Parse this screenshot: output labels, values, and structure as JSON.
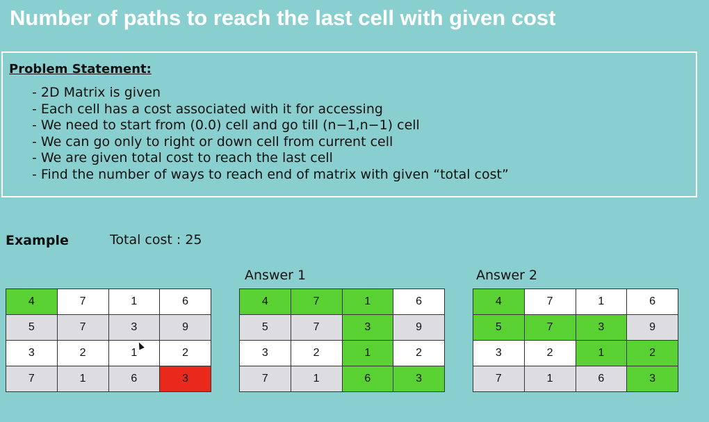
{
  "title": "Number of paths to reach the last cell with given cost",
  "problem": {
    "heading": "Problem Statement:",
    "items": [
      "- 2D Matrix is given",
      "- Each cell has a cost associated with it for accessing",
      "- We need to start from (0.0) cell and go till (n−1,n−1) cell",
      "- We can go only to right or down cell from current cell",
      "- We are given total cost to reach the last cell",
      "- Find the number of ways to reach end of matrix with given “total cost”"
    ]
  },
  "example": {
    "label": "Example",
    "total_cost": "Total cost : 25"
  },
  "matrix": [
    [
      "4",
      "7",
      "1",
      "6"
    ],
    [
      "5",
      "7",
      "3",
      "9"
    ],
    [
      "3",
      "2",
      "1",
      "2"
    ],
    [
      "7",
      "1",
      "6",
      "3"
    ]
  ],
  "grids": [
    {
      "label": "",
      "highlights": {
        "green": [
          [
            0,
            0
          ]
        ],
        "red": [
          [
            3,
            3
          ]
        ]
      }
    },
    {
      "label": "Answer 1",
      "highlights": {
        "green": [
          [
            0,
            0
          ],
          [
            0,
            1
          ],
          [
            0,
            2
          ],
          [
            1,
            2
          ],
          [
            2,
            2
          ],
          [
            3,
            2
          ],
          [
            3,
            3
          ]
        ],
        "red": []
      }
    },
    {
      "label": "Answer 2",
      "highlights": {
        "green": [
          [
            0,
            0
          ],
          [
            1,
            0
          ],
          [
            1,
            1
          ],
          [
            1,
            2
          ],
          [
            2,
            2
          ],
          [
            2,
            3
          ],
          [
            3,
            3
          ]
        ],
        "red": []
      }
    }
  ],
  "colors": {
    "highlight": "#5ad132",
    "target": "#e8291c",
    "background": "#89cfcf"
  }
}
